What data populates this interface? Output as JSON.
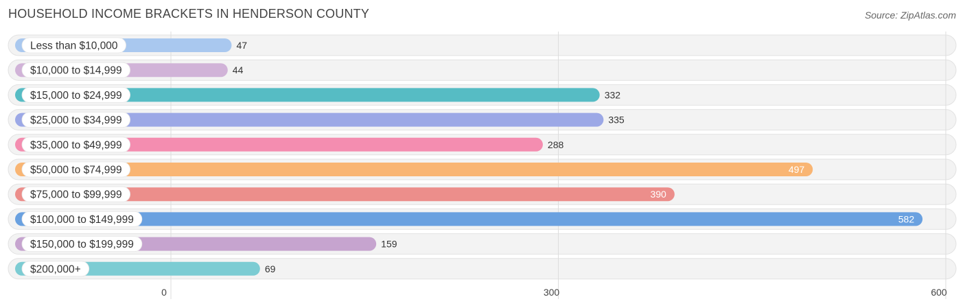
{
  "title": "HOUSEHOLD INCOME BRACKETS IN HENDERSON COUNTY",
  "source": "Source: ZipAtlas.com",
  "chart_data": {
    "type": "bar",
    "orientation": "horizontal",
    "title": "HOUSEHOLD INCOME BRACKETS IN HENDERSON COUNTY",
    "categories": [
      "Less than $10,000",
      "$10,000 to $14,999",
      "$15,000 to $24,999",
      "$25,000 to $34,999",
      "$35,000 to $49,999",
      "$50,000 to $74,999",
      "$75,000 to $99,999",
      "$100,000 to $149,999",
      "$150,000 to $199,999",
      "$200,000+"
    ],
    "values": [
      47,
      44,
      332,
      335,
      288,
      497,
      390,
      582,
      159,
      69
    ],
    "colors": [
      "#a9c8ef",
      "#d1b3d8",
      "#56bcc4",
      "#9ca8e6",
      "#f48db0",
      "#f9b573",
      "#ec8e8b",
      "#6aa1e0",
      "#c6a4cf",
      "#7cccd3"
    ],
    "xlim": [
      0,
      600
    ],
    "xticks": [
      0,
      300,
      600
    ],
    "grid": true,
    "legend": "none"
  }
}
